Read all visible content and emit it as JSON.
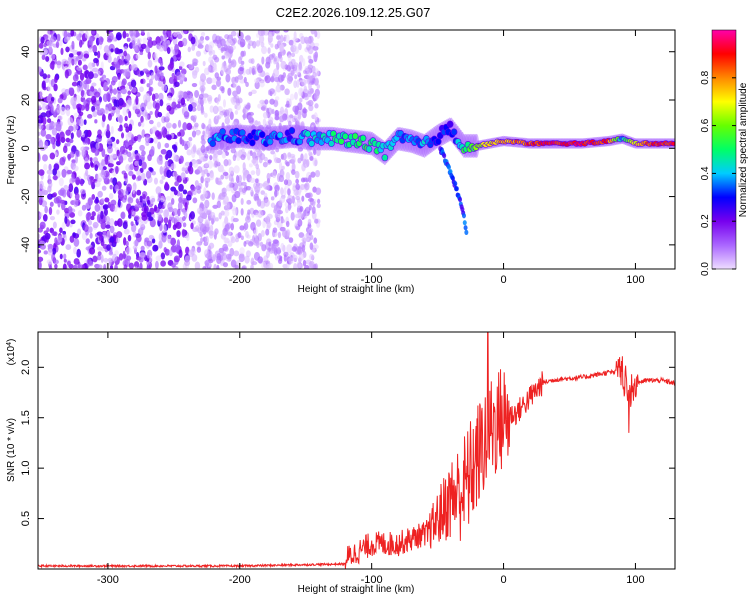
{
  "title": "C2E2.2026.109.12.25.G07",
  "chart_data": [
    {
      "type": "heatmap",
      "name": "spectrogram",
      "xlabel": "Height of straight line (km)",
      "ylabel": "Frequency (Hz)",
      "xlim": [
        -353,
        130
      ],
      "ylim": [
        -50,
        49
      ],
      "xticks": [
        -300,
        -200,
        -100,
        0,
        100
      ],
      "yticks": [
        -40,
        -20,
        0,
        20,
        40
      ],
      "colorbar": {
        "label": "Normalized spectral amplitude",
        "range": [
          0.0,
          1.0
        ],
        "ticks": [
          0.0,
          0.2,
          0.4,
          0.6,
          0.8
        ],
        "colors": [
          "#eeddff",
          "#aa66ff",
          "#7700ee",
          "#0000ff",
          "#00ccff",
          "#00ff66",
          "#66ff00",
          "#ffff00",
          "#ff8800",
          "#ff0000",
          "#ff00aa"
        ]
      },
      "ridge": {
        "x": [
          -222,
          -200,
          -180,
          -160,
          -145,
          -130,
          -115,
          -100,
          -90,
          -80,
          -70,
          -60,
          -50,
          -40,
          -30,
          -20,
          -10,
          0,
          20,
          40,
          60,
          80,
          90,
          100,
          110,
          130
        ],
        "freq": [
          4,
          5,
          4,
          5,
          4,
          4,
          3,
          2,
          -2,
          4,
          3,
          1,
          5,
          8,
          1,
          1,
          2,
          3,
          2,
          2,
          2,
          3,
          4,
          2,
          2,
          2
        ],
        "amplitude": [
          0.35,
          0.35,
          0.35,
          0.32,
          0.4,
          0.45,
          0.5,
          0.5,
          0.45,
          0.4,
          0.35,
          0.4,
          0.3,
          0.3,
          0.5,
          0.6,
          0.7,
          0.75,
          0.85,
          0.9,
          0.92,
          0.85,
          0.4,
          0.7,
          0.85,
          0.9
        ]
      },
      "branch": {
        "x": [
          -48,
          -40,
          -35,
          -30,
          -28
        ],
        "freq": [
          0,
          -10,
          -18,
          -28,
          -35
        ]
      }
    },
    {
      "type": "line",
      "name": "snr",
      "xlabel": "Height of straight line (km)",
      "ylabel": "SNR (10 * v/v)",
      "scale_label": "(x10",
      "scale_exp": "4",
      "scale_close": ")",
      "xlim": [
        -353,
        130
      ],
      "ylim": [
        0,
        2.35
      ],
      "xticks": [
        -300,
        -200,
        -100,
        0,
        100
      ],
      "yticks": [
        0.5,
        1.0,
        1.5,
        2.0
      ],
      "color": "#ee2222",
      "series": [
        {
          "name": "SNR",
          "x": [
            -353,
            -200,
            -120,
            -100,
            -80,
            -60,
            -50,
            -40,
            -30,
            -20,
            -10,
            0,
            10,
            20,
            30,
            40,
            60,
            80,
            90,
            95,
            100,
            110,
            120,
            130
          ],
          "y": [
            0.03,
            0.03,
            0.05,
            0.2,
            0.2,
            0.3,
            0.5,
            0.7,
            0.8,
            1.1,
            1.4,
            1.5,
            1.55,
            1.7,
            1.85,
            1.88,
            1.9,
            1.95,
            1.95,
            1.7,
            1.85,
            1.87,
            1.87,
            1.84
          ]
        }
      ]
    }
  ]
}
